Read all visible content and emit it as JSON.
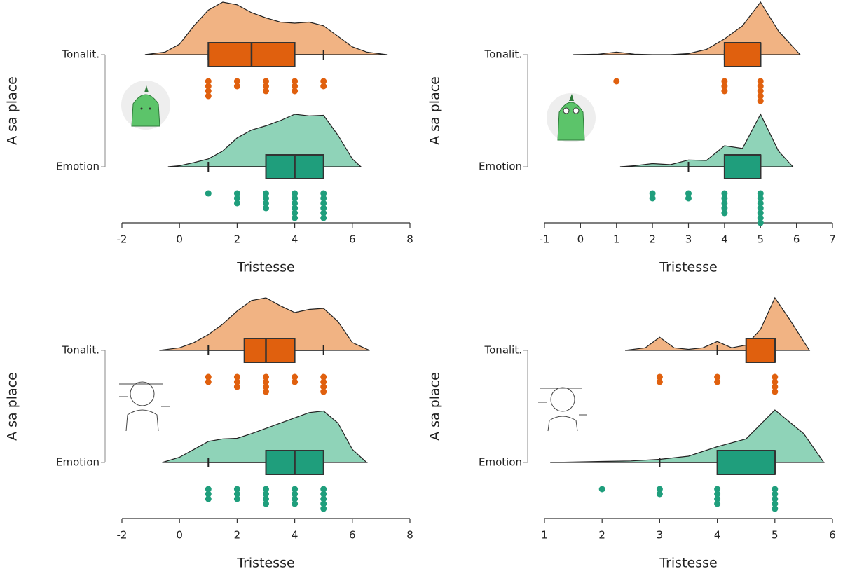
{
  "chart_data": [
    {
      "type": "raincloud",
      "xlabel": "Tristesse",
      "ylabel": "A sa place",
      "xlim": [
        -2,
        8
      ],
      "xticks": [
        -2,
        0,
        2,
        4,
        6,
        8
      ],
      "categories": [
        "Tonalit.",
        "Emotion"
      ],
      "colors": [
        "#e0600e",
        "#1f9e7c"
      ],
      "cloud_colors": [
        "#f1b383",
        "#8fd3b8"
      ],
      "groups": [
        {
          "box": {
            "whisker_low": 1,
            "q1": 1,
            "median": 2.5,
            "q3": 4,
            "whisker_high": 5
          },
          "points": [
            1,
            1,
            1,
            1,
            2,
            2,
            3,
            3,
            3,
            4,
            4,
            4,
            5,
            5
          ],
          "density": {
            "x": [
              -1.2,
              -0.5,
              0,
              0.5,
              1,
              1.5,
              2,
              2.5,
              3,
              3.5,
              4,
              4.5,
              5,
              5.5,
              6,
              6.5,
              7.2
            ],
            "y": [
              0,
              0.05,
              0.2,
              0.55,
              0.85,
              1,
              0.95,
              0.8,
              0.7,
              0.62,
              0.6,
              0.62,
              0.55,
              0.35,
              0.15,
              0.05,
              0
            ]
          }
        },
        {
          "box": {
            "whisker_low": 1,
            "q1": 3,
            "median": 4,
            "q3": 5,
            "whisker_high": 5
          },
          "points": [
            1,
            2,
            2,
            2,
            3,
            3,
            3,
            3,
            4,
            4,
            4,
            4,
            4,
            4,
            5,
            5,
            5,
            5,
            5,
            5
          ],
          "density": {
            "x": [
              -0.4,
              0,
              0.5,
              1,
              1.5,
              2,
              2.5,
              3,
              3.5,
              4,
              4.5,
              5,
              5.5,
              6,
              6.3
            ],
            "y": [
              0,
              0.02,
              0.08,
              0.15,
              0.3,
              0.55,
              0.7,
              0.78,
              0.88,
              1,
              0.97,
              0.98,
              0.6,
              0.15,
              0
            ]
          }
        }
      ]
    },
    {
      "type": "raincloud",
      "xlabel": "Tristesse",
      "ylabel": "A sa place",
      "xlim": [
        -1,
        7
      ],
      "xticks": [
        -1,
        0,
        1,
        2,
        3,
        4,
        5,
        6,
        7
      ],
      "categories": [
        "Tonalit.",
        "Emotion"
      ],
      "colors": [
        "#e0600e",
        "#1f9e7c"
      ],
      "cloud_colors": [
        "#f1b383",
        "#8fd3b8"
      ],
      "groups": [
        {
          "box": {
            "whisker_low": 4,
            "q1": 4,
            "median": 5,
            "q3": 5,
            "whisker_high": 5
          },
          "points": [
            1,
            4,
            4,
            4,
            5,
            5,
            5,
            5,
            5
          ],
          "density": {
            "x": [
              -0.2,
              0.5,
              1,
              1.5,
              2,
              2.5,
              3,
              3.5,
              4,
              4.5,
              5,
              5.5,
              6.1
            ],
            "y": [
              0,
              0.01,
              0.05,
              0.01,
              0,
              0,
              0.02,
              0.1,
              0.3,
              0.55,
              1,
              0.45,
              0
            ]
          }
        },
        {
          "box": {
            "whisker_low": 3,
            "q1": 4,
            "median": 5,
            "q3": 5,
            "whisker_high": 5
          },
          "points": [
            2,
            2,
            3,
            3,
            4,
            4,
            4,
            4,
            4,
            5,
            5,
            5,
            5,
            5,
            5,
            5
          ],
          "density": {
            "x": [
              1.1,
              1.5,
              2,
              2.5,
              3,
              3.5,
              4,
              4.5,
              5,
              5.5,
              5.9
            ],
            "y": [
              0,
              0.02,
              0.06,
              0.04,
              0.13,
              0.12,
              0.4,
              0.35,
              1,
              0.3,
              0
            ]
          }
        }
      ]
    },
    {
      "type": "raincloud",
      "xlabel": "Tristesse",
      "ylabel": "A sa place",
      "xlim": [
        -2,
        8
      ],
      "xticks": [
        -2,
        0,
        2,
        4,
        6,
        8
      ],
      "categories": [
        "Tonalit.",
        "Emotion"
      ],
      "colors": [
        "#e0600e",
        "#1f9e7c"
      ],
      "cloud_colors": [
        "#f1b383",
        "#8fd3b8"
      ],
      "groups": [
        {
          "box": {
            "whisker_low": 1,
            "q1": 2.25,
            "median": 3,
            "q3": 4,
            "whisker_high": 5
          },
          "points": [
            1,
            1,
            2,
            2,
            2,
            3,
            3,
            3,
            3,
            4,
            4,
            5,
            5,
            5,
            5
          ],
          "density": {
            "x": [
              -0.7,
              0,
              0.5,
              1,
              1.5,
              2,
              2.5,
              3,
              3.5,
              4,
              4.5,
              5,
              5.5,
              6,
              6.6
            ],
            "y": [
              0,
              0.05,
              0.15,
              0.3,
              0.5,
              0.75,
              0.95,
              1,
              0.85,
              0.72,
              0.78,
              0.8,
              0.55,
              0.15,
              0
            ]
          }
        },
        {
          "box": {
            "whisker_low": 1,
            "q1": 3,
            "median": 4,
            "q3": 5,
            "whisker_high": 5
          },
          "points": [
            1,
            1,
            1,
            2,
            2,
            2,
            3,
            3,
            3,
            3,
            4,
            4,
            4,
            4,
            5,
            5,
            5,
            5,
            5
          ],
          "density": {
            "x": [
              -0.6,
              0,
              0.5,
              1,
              1.5,
              2,
              2.5,
              3,
              3.5,
              4,
              4.5,
              5,
              5.5,
              6,
              6.5
            ],
            "y": [
              0,
              0.1,
              0.25,
              0.4,
              0.45,
              0.46,
              0.55,
              0.65,
              0.75,
              0.85,
              0.95,
              0.98,
              0.75,
              0.25,
              0
            ]
          }
        }
      ]
    },
    {
      "type": "raincloud",
      "xlabel": "Tristesse",
      "ylabel": "A sa place",
      "xlim": [
        1,
        6
      ],
      "xticks": [
        1,
        2,
        3,
        4,
        5,
        6
      ],
      "categories": [
        "Tonalit.",
        "Emotion"
      ],
      "colors": [
        "#e0600e",
        "#1f9e7c"
      ],
      "cloud_colors": [
        "#f1b383",
        "#8fd3b8"
      ],
      "groups": [
        {
          "box": {
            "whisker_low": 4,
            "q1": 4.5,
            "median": 5,
            "q3": 5,
            "whisker_high": 5
          },
          "points": [
            3,
            3,
            4,
            4,
            5,
            5,
            5,
            5
          ],
          "density": {
            "x": [
              2.4,
              2.75,
              3,
              3.25,
              3.5,
              3.75,
              4,
              4.25,
              4.5,
              4.75,
              5,
              5.25,
              5.6
            ],
            "y": [
              0,
              0.05,
              0.25,
              0.05,
              0.02,
              0.05,
              0.17,
              0.05,
              0.1,
              0.4,
              1,
              0.6,
              0
            ]
          }
        },
        {
          "box": {
            "whisker_low": 3,
            "q1": 4,
            "median": 5,
            "q3": 5,
            "whisker_high": 5
          },
          "points": [
            2,
            3,
            3,
            4,
            4,
            4,
            4,
            5,
            5,
            5,
            5,
            5
          ],
          "density": {
            "x": [
              1.1,
              1.5,
              2,
              2.5,
              3,
              3.5,
              4,
              4.5,
              5,
              5.5,
              5.85
            ],
            "y": [
              0,
              0.01,
              0.02,
              0.03,
              0.06,
              0.12,
              0.3,
              0.45,
              1,
              0.55,
              0
            ]
          }
        }
      ]
    }
  ]
}
